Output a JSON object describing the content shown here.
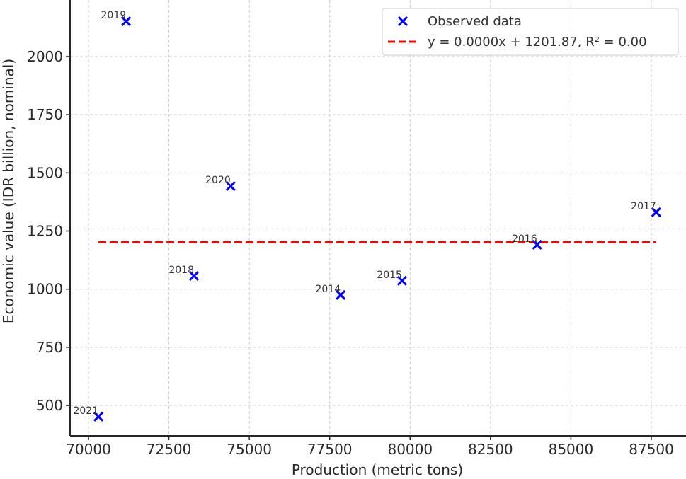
{
  "chart_data": {
    "type": "scatter",
    "title": "",
    "xlabel": "Production (metric tons)",
    "ylabel": "Economic value (IDR billion, nominal)",
    "xlim": [
      69400,
      88600
    ],
    "ylim": [
      360,
      2240
    ],
    "grid": true,
    "legend_position": "upper right",
    "x_ticks": [
      70000,
      72500,
      75000,
      77500,
      80000,
      82500,
      85000,
      87500
    ],
    "y_ticks": [
      500,
      750,
      1000,
      1250,
      1500,
      1750,
      2000
    ],
    "series": [
      {
        "name": "Observed data",
        "marker": "x",
        "color": "#0000ff",
        "points": [
          {
            "label": "2014",
            "x": 77840,
            "y": 975
          },
          {
            "label": "2015",
            "x": 79750,
            "y": 1036
          },
          {
            "label": "2016",
            "x": 83950,
            "y": 1191
          },
          {
            "label": "2017",
            "x": 87650,
            "y": 1331
          },
          {
            "label": "2018",
            "x": 73280,
            "y": 1057
          },
          {
            "label": "2019",
            "x": 71170,
            "y": 2152
          },
          {
            "label": "2020",
            "x": 74420,
            "y": 1443
          },
          {
            "label": "2021",
            "x": 70310,
            "y": 452
          }
        ]
      },
      {
        "name": "y = 0.0000x + 1201.87, R² = 0.00",
        "type": "line",
        "style": "dashed",
        "color": "#ff0000",
        "slope": 0.0,
        "intercept": 1201.87,
        "r_squared": 0.0,
        "x_range": [
          70310,
          87650
        ]
      }
    ]
  },
  "legend": {
    "items": [
      {
        "label": "Observed data",
        "symbol": "x-marker",
        "color": "#0000ff"
      },
      {
        "label": "y = 0.0000x + 1201.87, R² = 0.00",
        "symbol": "dashed-line",
        "color": "#ff0000"
      }
    ]
  },
  "axes": {
    "x_tick_labels": [
      "70000",
      "72500",
      "75000",
      "77500",
      "80000",
      "82500",
      "85000",
      "87500"
    ],
    "y_tick_labels": [
      "500",
      "750",
      "1000",
      "1250",
      "1500",
      "1750",
      "2000"
    ]
  }
}
